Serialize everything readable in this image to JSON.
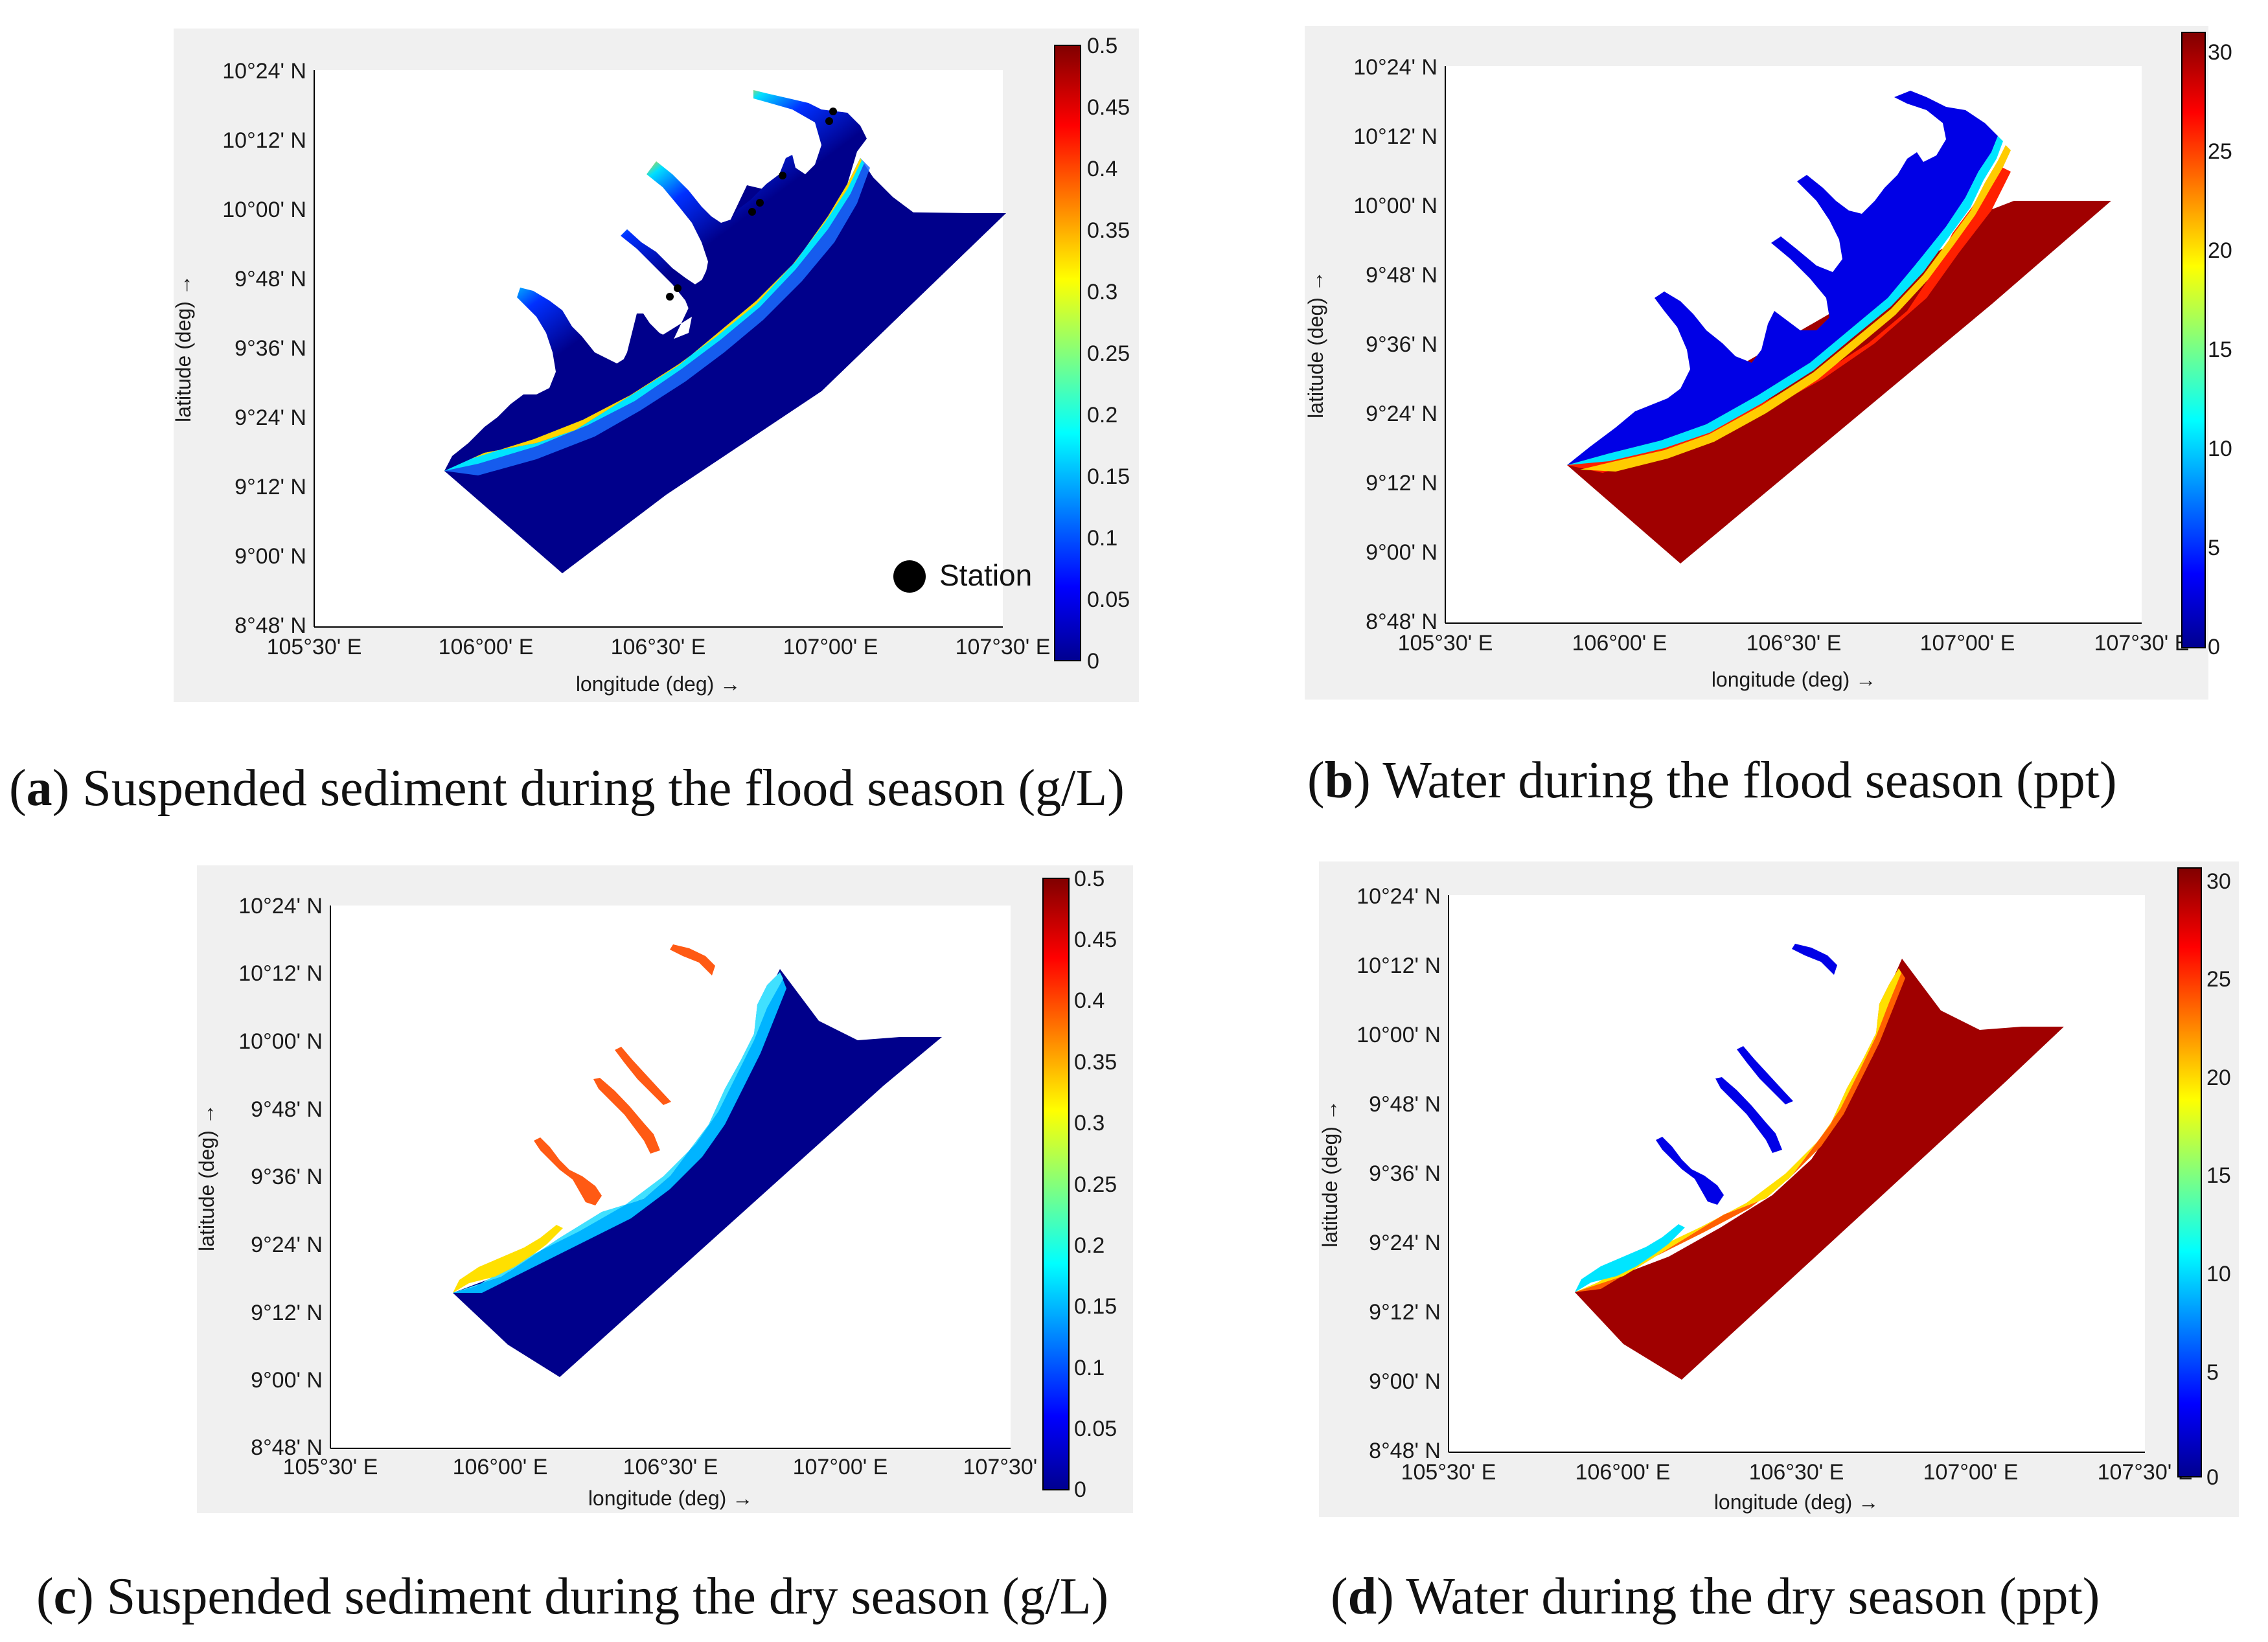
{
  "axes": {
    "lon_ticks": [
      "105°30' E",
      "106°00' E",
      "106°30' E",
      "107°00' E",
      "107°30' E"
    ],
    "lat_ticks": [
      "10°24' N",
      "10°12' N",
      "10°00' N",
      "9°48' N",
      "9°36' N",
      "9°24' N",
      "9°12' N",
      "9°00' N",
      "8°48' N"
    ],
    "xlabel": "longitude (deg) →",
    "ylabel": "latitude (deg) →"
  },
  "legend": {
    "station_label": "Station"
  },
  "colormap": [
    "#00008f",
    "#0000ff",
    "#00ffff",
    "#ffff00",
    "#ff0000",
    "#800000"
  ],
  "colors": {
    "sea_blue": "#00008b",
    "river_blue": "#0000e6",
    "sea_red": "#a00000",
    "river_orange": "#ff5a14",
    "plot_bg": "#ffffff",
    "frame_bg": "#f0f0f0"
  },
  "panels": [
    {
      "id": "a",
      "letter": "a",
      "caption": "Suspended sediment during the flood season (g/L)",
      "colorbar_ticks": [
        "0.5",
        "0.45",
        "0.4",
        "0.35",
        "0.3",
        "0.25",
        "0.2",
        "0.15",
        "0.1",
        "0.05",
        "0"
      ],
      "colorbar_range": [
        0,
        0.5
      ]
    },
    {
      "id": "b",
      "letter": "b",
      "caption": "Water during the flood season (ppt)",
      "colorbar_ticks": [
        "30",
        "25",
        "20",
        "15",
        "10",
        "5",
        "0"
      ],
      "colorbar_range": [
        0,
        31
      ]
    },
    {
      "id": "c",
      "letter": "c",
      "caption": "Suspended sediment during the dry season (g/L)",
      "colorbar_ticks": [
        "0.5",
        "0.45",
        "0.4",
        "0.35",
        "0.3",
        "0.25",
        "0.2",
        "0.15",
        "0.1",
        "0.05",
        "0"
      ],
      "colorbar_range": [
        0,
        0.5
      ]
    },
    {
      "id": "d",
      "letter": "d",
      "caption": "Water during the dry season (ppt)",
      "colorbar_ticks": [
        "30",
        "25",
        "20",
        "15",
        "10",
        "5",
        "0"
      ],
      "colorbar_range": [
        0,
        31
      ]
    }
  ]
}
